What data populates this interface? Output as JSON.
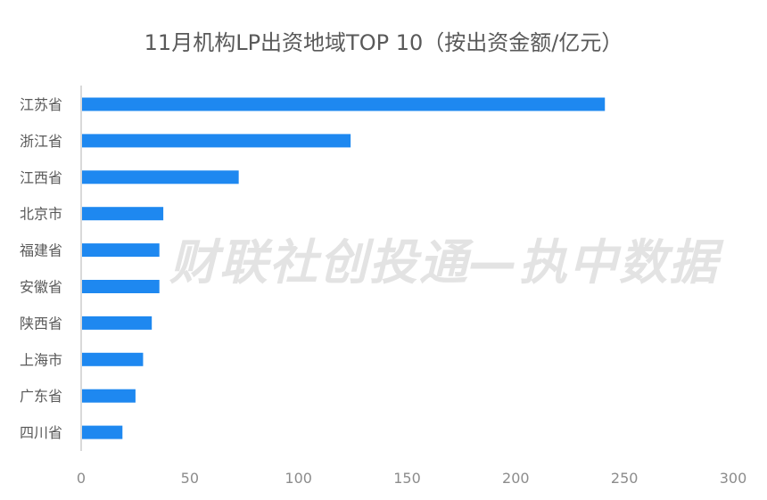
{
  "watermark": "财联社创投通—执中数据",
  "chart_data": {
    "type": "bar",
    "orientation": "horizontal",
    "title": "11月机构LP出资地域TOP 10（按出资金额/亿元）",
    "categories": [
      "江苏省",
      "浙江省",
      "江西省",
      "北京市",
      "福建省",
      "安徽省",
      "陕西省",
      "上海市",
      "广东省",
      "四川省"
    ],
    "values": [
      241,
      124,
      72.5,
      37.8,
      36,
      36,
      32.5,
      28.5,
      25,
      19
    ],
    "xlim": [
      0,
      300
    ],
    "xticks": [
      0,
      50,
      100,
      150,
      200,
      250,
      300
    ],
    "grid": false,
    "bar_color": "#1E88F0"
  }
}
